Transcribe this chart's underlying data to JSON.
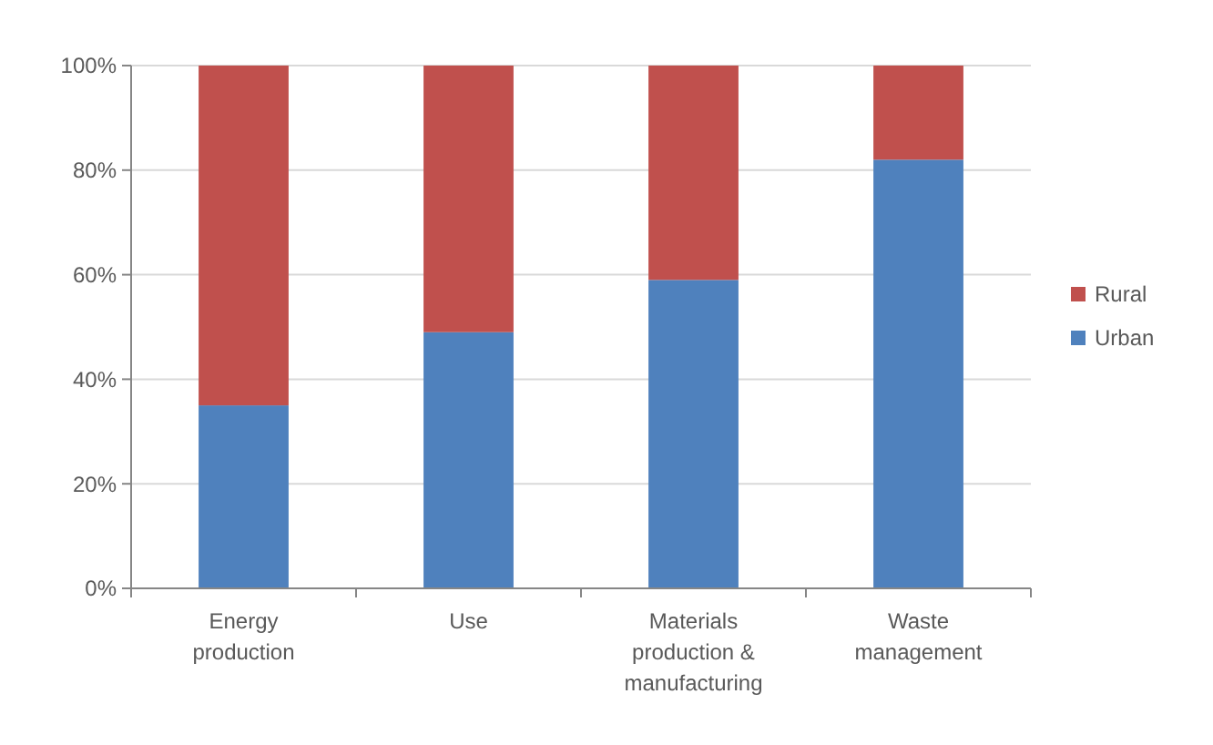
{
  "chart_data": {
    "type": "bar",
    "stacked": true,
    "categories": [
      "Energy production",
      "Use",
      "Materials production & manufacturing",
      "Waste management"
    ],
    "series": [
      {
        "name": "Urban",
        "color": "#4f81bd",
        "values": [
          35,
          49,
          59,
          82
        ]
      },
      {
        "name": "Rural",
        "color": "#c0504d",
        "values": [
          65,
          51,
          41,
          18
        ]
      }
    ],
    "ylim": [
      0,
      100
    ],
    "yticks": [
      {
        "value": 0,
        "label": "0%"
      },
      {
        "value": 20,
        "label": "20%"
      },
      {
        "value": 40,
        "label": "40%"
      },
      {
        "value": 60,
        "label": "60%"
      },
      {
        "value": 80,
        "label": "80%"
      },
      {
        "value": 100,
        "label": "100%"
      }
    ],
    "grid": "y",
    "legend": "right"
  }
}
